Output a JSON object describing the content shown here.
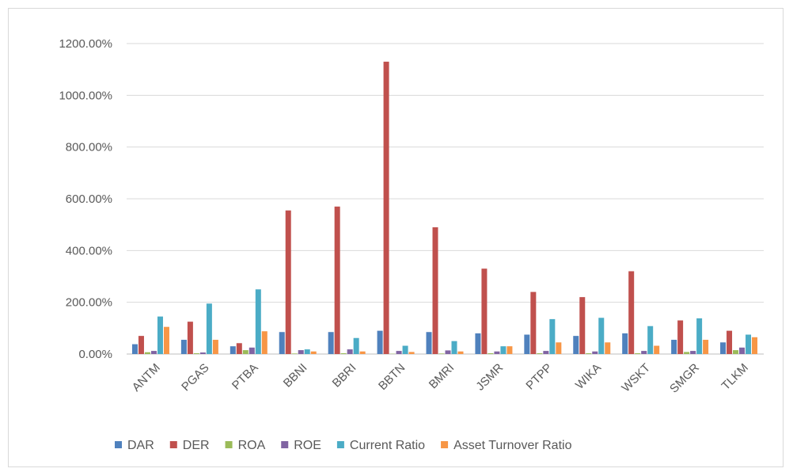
{
  "chart_data": {
    "type": "bar",
    "categories": [
      "ANTM",
      "PGAS",
      "PTBA",
      "BBNI",
      "BBRI",
      "BBTN",
      "BMRI",
      "JSMR",
      "PTPP",
      "WIKA",
      "WSKT",
      "SMGR",
      "TLKM"
    ],
    "yticks": [
      "0.00%",
      "200.00%",
      "400.00%",
      "600.00%",
      "800.00%",
      "1000.00%",
      "1200.00%"
    ],
    "ylim": [
      0,
      1200
    ],
    "grid": true,
    "legend_position": "bottom",
    "series": [
      {
        "name": "DAR",
        "color": "#4F81BD",
        "values": [
          38,
          55,
          30,
          85,
          85,
          90,
          85,
          80,
          75,
          70,
          80,
          55,
          45
        ]
      },
      {
        "name": "DER",
        "color": "#C0504D",
        "values": [
          70,
          125,
          42,
          555,
          570,
          1130,
          490,
          330,
          240,
          220,
          320,
          130,
          90
        ]
      },
      {
        "name": "ROA",
        "color": "#9BBB59",
        "values": [
          7,
          3,
          15,
          2,
          3,
          1,
          2,
          3,
          3,
          3,
          3,
          8,
          15
        ]
      },
      {
        "name": "ROE",
        "color": "#8064A2",
        "values": [
          12,
          6,
          25,
          15,
          18,
          12,
          14,
          10,
          12,
          10,
          12,
          12,
          25
        ]
      },
      {
        "name": "Current Ratio",
        "color": "#4BACC6",
        "values": [
          145,
          195,
          250,
          18,
          62,
          32,
          50,
          30,
          135,
          140,
          108,
          138,
          75
        ]
      },
      {
        "name": "Asset Turnover Ratio",
        "color": "#F79646",
        "values": [
          105,
          55,
          88,
          10,
          10,
          8,
          10,
          30,
          45,
          45,
          32,
          55,
          65
        ]
      }
    ]
  }
}
